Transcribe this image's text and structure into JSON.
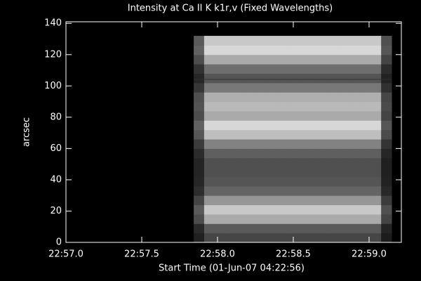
{
  "chart_data": {
    "type": "heatmap",
    "title": "Intensity at Ca II K k1r,v (Fixed Wavelengths)",
    "xlabel": "Start Time (01-Jun-07 04:22:56)",
    "ylabel": "arcsec",
    "xlim": [
      1377,
      1379.213
    ],
    "ylim": [
      0,
      141
    ],
    "xticks": [
      {
        "value": 1377,
        "label": "22:57.0"
      },
      {
        "value": 1377.5,
        "label": "22:57.5"
      },
      {
        "value": 1378,
        "label": "22:58.0"
      },
      {
        "value": 1378.5,
        "label": "22:58.5"
      },
      {
        "value": 1379,
        "label": "22:59.0"
      }
    ],
    "yticks": [
      0,
      20,
      40,
      60,
      80,
      100,
      120,
      140
    ],
    "xbins": [
      1377.843,
      1377.9117,
      1377.9804,
      1378.0491,
      1378.1178,
      1378.1865,
      1378.2552,
      1378.3239,
      1378.3926,
      1378.4613,
      1378.53,
      1378.5987,
      1378.6674,
      1378.7361,
      1378.8048,
      1378.8735,
      1378.9422,
      1379.0109,
      1379.0796,
      1379.1483
    ],
    "ybins": [
      0,
      6,
      12,
      18,
      24,
      30,
      36,
      42,
      48,
      54,
      60,
      66,
      72,
      78,
      84,
      90,
      96,
      102,
      108,
      114,
      120,
      126,
      132
    ],
    "z": [
      [
        32,
        70,
        70,
        70,
        70,
        70,
        70,
        70,
        70,
        70,
        70,
        70,
        70,
        70,
        70,
        70,
        70,
        70,
        28
      ],
      [
        41,
        90,
        90,
        90,
        90,
        90,
        90,
        90,
        90,
        90,
        90,
        90,
        90,
        90,
        90,
        90,
        90,
        90,
        36
      ],
      [
        77,
        170,
        170,
        170,
        170,
        170,
        170,
        170,
        170,
        170,
        170,
        170,
        170,
        170,
        170,
        170,
        170,
        170,
        68
      ],
      [
        90,
        200,
        200,
        200,
        200,
        200,
        200,
        200,
        200,
        200,
        200,
        200,
        200,
        200,
        200,
        200,
        200,
        200,
        80
      ],
      [
        68,
        150,
        150,
        150,
        150,
        150,
        150,
        150,
        150,
        150,
        150,
        150,
        150,
        150,
        150,
        150,
        150,
        150,
        60
      ],
      [
        45,
        100,
        100,
        100,
        100,
        100,
        100,
        100,
        100,
        100,
        100,
        100,
        100,
        100,
        100,
        100,
        100,
        100,
        40
      ],
      [
        38,
        85,
        85,
        85,
        85,
        85,
        85,
        85,
        85,
        85,
        85,
        85,
        85,
        85,
        85,
        85,
        85,
        85,
        34
      ],
      [
        36,
        80,
        80,
        80,
        80,
        80,
        80,
        80,
        80,
        80,
        80,
        80,
        80,
        80,
        80,
        80,
        80,
        80,
        32
      ],
      [
        36,
        80,
        80,
        80,
        80,
        80,
        80,
        80,
        80,
        80,
        80,
        80,
        80,
        80,
        80,
        80,
        80,
        80,
        32
      ],
      [
        43,
        95,
        95,
        95,
        95,
        95,
        95,
        95,
        95,
        95,
        95,
        95,
        95,
        95,
        95,
        95,
        95,
        95,
        38
      ],
      [
        59,
        130,
        130,
        130,
        130,
        130,
        130,
        130,
        130,
        130,
        130,
        130,
        130,
        130,
        130,
        130,
        130,
        130,
        52
      ],
      [
        86,
        190,
        190,
        190,
        190,
        190,
        190,
        190,
        190,
        190,
        190,
        190,
        190,
        190,
        190,
        190,
        190,
        190,
        76
      ],
      [
        97,
        215,
        215,
        215,
        215,
        215,
        215,
        215,
        215,
        215,
        215,
        215,
        215,
        215,
        215,
        215,
        215,
        215,
        86
      ],
      [
        77,
        170,
        170,
        170,
        170,
        170,
        170,
        170,
        170,
        170,
        170,
        170,
        170,
        170,
        170,
        170,
        170,
        170,
        68
      ],
      [
        83,
        185,
        185,
        185,
        185,
        185,
        185,
        185,
        185,
        185,
        185,
        185,
        185,
        185,
        185,
        185,
        185,
        185,
        74
      ],
      [
        79,
        175,
        175,
        175,
        175,
        175,
        175,
        175,
        175,
        175,
        175,
        175,
        175,
        175,
        175,
        175,
        175,
        175,
        70
      ],
      [
        54,
        120,
        120,
        120,
        120,
        120,
        120,
        120,
        120,
        120,
        120,
        120,
        120,
        120,
        120,
        120,
        120,
        120,
        48
      ],
      [
        38,
        85,
        85,
        85,
        85,
        85,
        85,
        85,
        85,
        85,
        85,
        85,
        85,
        85,
        85,
        85,
        85,
        85,
        34
      ],
      [
        50,
        110,
        110,
        110,
        110,
        110,
        110,
        110,
        110,
        110,
        110,
        110,
        110,
        110,
        110,
        110,
        110,
        110,
        44
      ],
      [
        77,
        170,
        170,
        170,
        170,
        170,
        170,
        170,
        170,
        170,
        170,
        170,
        170,
        170,
        170,
        170,
        170,
        170,
        68
      ],
      [
        97,
        215,
        215,
        215,
        215,
        215,
        215,
        215,
        215,
        215,
        215,
        215,
        215,
        215,
        215,
        215,
        215,
        215,
        86
      ],
      [
        90,
        200,
        200,
        200,
        200,
        200,
        200,
        200,
        200,
        200,
        200,
        200,
        200,
        200,
        200,
        200,
        200,
        200,
        80
      ]
    ]
  }
}
